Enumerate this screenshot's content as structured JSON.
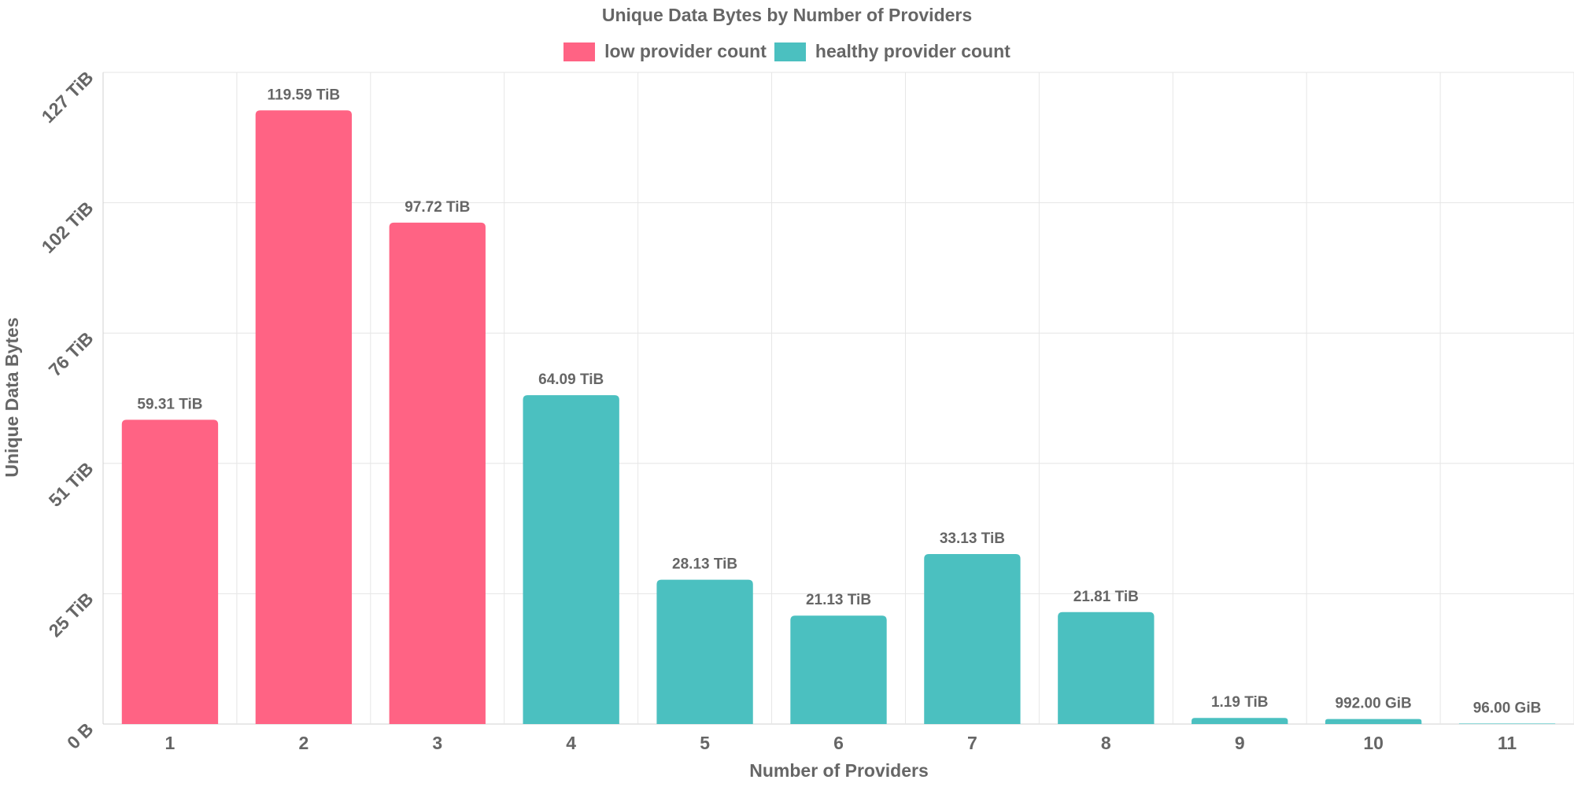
{
  "chart_data": {
    "type": "bar",
    "title": "Unique Data Bytes by Number of Providers",
    "xlabel": "Number of Providers",
    "ylabel": "Unique Data Bytes",
    "categories": [
      "1",
      "2",
      "3",
      "4",
      "5",
      "6",
      "7",
      "8",
      "9",
      "10",
      "11"
    ],
    "values_tib": [
      59.31,
      119.59,
      97.72,
      64.09,
      28.13,
      21.13,
      33.13,
      21.81,
      1.19,
      0.96875,
      0.09375
    ],
    "value_labels": [
      "59.31 TiB",
      "119.59 TiB",
      "97.72 TiB",
      "64.09 TiB",
      "28.13 TiB",
      "21.13 TiB",
      "33.13 TiB",
      "21.81 TiB",
      "1.19 TiB",
      "992.00 GiB",
      "96.00 GiB"
    ],
    "series_index": [
      0,
      0,
      0,
      1,
      1,
      1,
      1,
      1,
      1,
      1,
      1
    ],
    "series": [
      {
        "name": "low provider count",
        "color": "#ff6384"
      },
      {
        "name": "healthy provider count",
        "color": "#4bc0c0"
      }
    ],
    "yticks": [
      {
        "value": 0,
        "label": "0 B"
      },
      {
        "value": 25.4,
        "label": "25 TiB"
      },
      {
        "value": 50.8,
        "label": "51 TiB"
      },
      {
        "value": 76.2,
        "label": "76 TiB"
      },
      {
        "value": 101.6,
        "label": "102 TiB"
      },
      {
        "value": 127,
        "label": "127 TiB"
      }
    ],
    "ylim": [
      0,
      127
    ],
    "grid": true,
    "legend_position": "top"
  }
}
